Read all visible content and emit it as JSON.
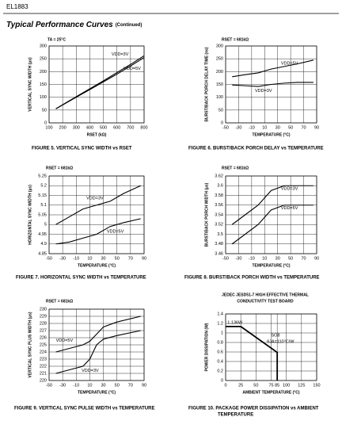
{
  "header": {
    "doc_id": "EL1883",
    "title": "Typical Performance Curves",
    "title_note": "(Continued)"
  },
  "chart_data": [
    {
      "type": "line",
      "annotation": "TA = 25°C",
      "ylabel": "VERTICAL SYNC WIDTH (µs)",
      "xlabel": "RSET (kΩ)",
      "caption": "FIGURE 5.  VERTICAL SYNC WIDTH vs RSET",
      "xlim": [
        100,
        800
      ],
      "xticks": [
        100,
        200,
        300,
        400,
        500,
        600,
        700,
        800
      ],
      "ylim": [
        0,
        300
      ],
      "yticks": [
        0,
        50,
        100,
        150,
        200,
        250,
        300
      ],
      "grid": true,
      "x": [
        150,
        200,
        300,
        400,
        500,
        600,
        700,
        800
      ],
      "series": [
        {
          "name": "VDD=3V",
          "color": "#000000",
          "values": [
            55,
            71,
            102,
            133,
            164,
            196,
            228,
            262
          ]
        },
        {
          "name": "VDD=5V",
          "color": "#000000",
          "values": [
            55,
            70,
            100,
            130,
            160,
            190,
            222,
            255
          ]
        }
      ]
    },
    {
      "type": "line",
      "annotation": "RSET = 681kΩ",
      "ylabel": "BURST/BACK PORCH DELAY TIME (ns)",
      "xlabel": "TEMPERATURE (°C)",
      "caption": "FIGURE 6.  BURST/BACK PORCH DELAY vs TEMPERATURE",
      "xlim": [
        -50,
        90
      ],
      "xticks": [
        -50,
        -30,
        -10,
        10,
        30,
        50,
        70,
        90
      ],
      "ylim": [
        0,
        300
      ],
      "yticks": [
        0,
        50,
        100,
        150,
        200,
        250,
        300
      ],
      "grid": true,
      "x": [
        -40,
        -20,
        0,
        20,
        40,
        60,
        85
      ],
      "series": [
        {
          "name": "VDD=5V",
          "color": "#000000",
          "values": [
            180,
            188,
            195,
            210,
            220,
            230,
            245
          ]
        },
        {
          "name": "VDD=3V",
          "color": "#000000",
          "values": [
            148,
            145,
            142,
            150,
            155,
            158,
            158
          ]
        }
      ]
    },
    {
      "type": "line",
      "annotation": "RSET = 681kΩ",
      "ylabel": "HORIZONTAL SYNC WIDTH (µs)",
      "xlabel": "TEMPERATURE (°C)",
      "caption": "FIGURE 7.  HORIZONTAL SYNC WIDTH vs TEMPERATURE",
      "xlim": [
        -50,
        90
      ],
      "xticks": [
        -50,
        -30,
        -10,
        10,
        30,
        50,
        70,
        90
      ],
      "ylim": [
        4.85,
        5.25
      ],
      "yticks": [
        4.85,
        4.9,
        4.95,
        5,
        5.05,
        5.1,
        5.15,
        5.2,
        5.25
      ],
      "grid": true,
      "x": [
        -40,
        -20,
        0,
        20,
        40,
        60,
        85
      ],
      "series": [
        {
          "name": "VDD=3V",
          "color": "#000000",
          "values": [
            5.0,
            5.04,
            5.08,
            5.1,
            5.12,
            5.16,
            5.2
          ]
        },
        {
          "name": "VDD=5V",
          "color": "#000000",
          "values": [
            4.9,
            4.91,
            4.93,
            4.95,
            4.99,
            5.01,
            5.03
          ]
        }
      ]
    },
    {
      "type": "line",
      "annotation": "RSET = 681kΩ",
      "ylabel": "BURST/BACK PORCH WIDTH (µs)",
      "xlabel": "TEMPERATURE (°C)",
      "caption": "FIGURE 8.  BURST/BACK PORCH WIDTH vs TEMPERATURE",
      "xlim": [
        -50,
        90
      ],
      "xticks": [
        -50,
        -30,
        -10,
        10,
        30,
        50,
        70,
        90
      ],
      "ylim": [
        3.46,
        3.62
      ],
      "yticks": [
        3.46,
        3.48,
        3.5,
        3.52,
        3.54,
        3.56,
        3.58,
        3.6,
        3.62
      ],
      "grid": true,
      "x": [
        -40,
        -20,
        0,
        20,
        40,
        60,
        85
      ],
      "series": [
        {
          "name": "VDD=3V",
          "color": "#000000",
          "values": [
            3.52,
            3.54,
            3.56,
            3.59,
            3.6,
            3.6,
            3.6
          ]
        },
        {
          "name": "VDD=5V",
          "color": "#000000",
          "values": [
            3.48,
            3.5,
            3.52,
            3.55,
            3.56,
            3.56,
            3.56
          ]
        }
      ]
    },
    {
      "type": "line",
      "annotation": "RSET = 681kΩ",
      "ylabel": "VERTICAL SYNC PLUS WIDTH (µs)",
      "xlabel": "TEMPERATURE (°C)",
      "caption": "FIGURE 9.  VERTICAL SYNC PULSE WIDTH vs TEMPERATURE",
      "xlim": [
        -50,
        90
      ],
      "xticks": [
        -50,
        -30,
        -10,
        10,
        30,
        50,
        70,
        90
      ],
      "ylim": [
        220,
        230
      ],
      "yticks": [
        220,
        221,
        222,
        223,
        224,
        225,
        226,
        227,
        228,
        229,
        230
      ],
      "grid": true,
      "x": [
        -40,
        -20,
        0,
        10,
        20,
        30,
        50,
        85
      ],
      "series": [
        {
          "name": "VDD=5V",
          "color": "#000000",
          "values": [
            224,
            224.5,
            225,
            225.5,
            226.5,
            227.5,
            228.2,
            229
          ]
        },
        {
          "name": "VDD=3V",
          "color": "#000000",
          "values": [
            221,
            221.5,
            222,
            223,
            225,
            225.8,
            226.3,
            227
          ]
        }
      ]
    },
    {
      "type": "line",
      "annotation": [
        "JEDEC JESD51-7 HIGH EFFECTIVE THERMAL",
        "CONDUCTIVITY TEST BOARD"
      ],
      "ylabel": "POWER DISSIPATION (W)",
      "xlabel": "AMBIENT TEMPERATURE (°C)",
      "caption": [
        "FIGURE 10.  PACKAGE POWER DISSIPATION vs AMBIENT",
        "TEMPERATURE"
      ],
      "xlim": [
        0,
        150
      ],
      "xticks": [
        0,
        25,
        50,
        75,
        85,
        100,
        125,
        150
      ],
      "ylim": [
        0,
        1.4
      ],
      "yticks": [
        0,
        0.2,
        0.4,
        0.6,
        0.8,
        1,
        1.2,
        1.4
      ],
      "grid": true,
      "labels": [
        "1.136W",
        "θJA=110°C/W"
      ],
      "x": [
        0,
        25,
        85,
        85
      ],
      "series": [
        {
          "name": "SO8",
          "color": "#000000",
          "values": [
            1.136,
            1.136,
            0.591,
            0
          ]
        }
      ]
    }
  ]
}
